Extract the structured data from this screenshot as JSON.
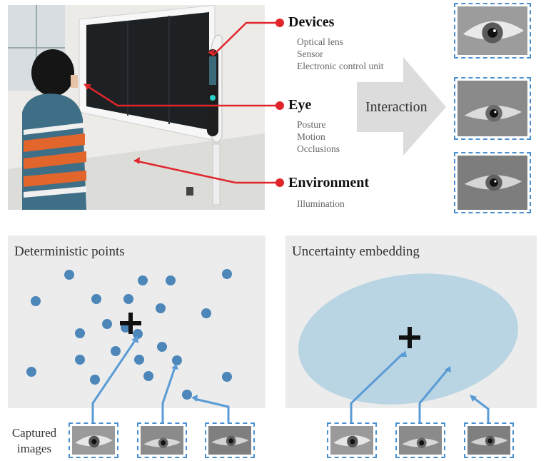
{
  "labels": {
    "devices": {
      "title": "Devices",
      "items": [
        "Optical lens",
        "Sensor",
        "Electronic control unit"
      ]
    },
    "eye": {
      "title": "Eye",
      "items": [
        "Posture",
        "Motion",
        "Occlusions"
      ]
    },
    "environment": {
      "title": "Environment",
      "items": [
        "Illumination"
      ]
    }
  },
  "interaction_label": "Interaction",
  "panels": {
    "left": {
      "title": "Deterministic points"
    },
    "right": {
      "title": "Uncertainty embedding"
    }
  },
  "captured_label": [
    "Captured",
    "images"
  ],
  "colors": {
    "pointer": "#e0262b",
    "points": "#4d86b8",
    "embedding": "#b9d5e3",
    "arrows": "#5a9bd5",
    "dash": "#4a90d0",
    "panel_bg": "#ececec",
    "interaction_arrow": "#dcdcdc"
  }
}
